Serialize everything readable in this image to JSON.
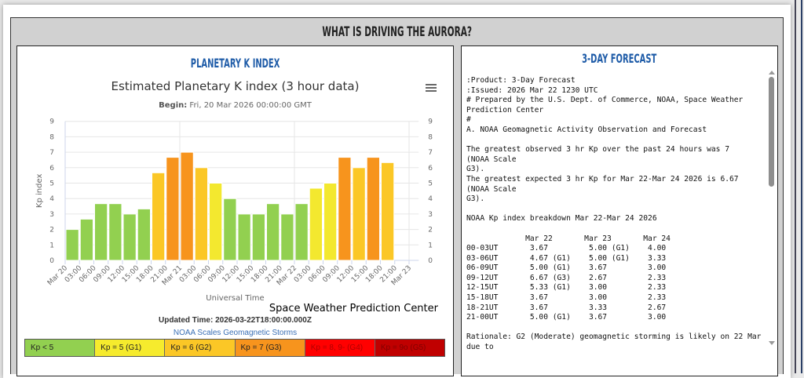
{
  "panel": {
    "title": "WHAT IS DRIVING THE AURORA?"
  },
  "kp_panel": {
    "title": "PLANETARY K INDEX",
    "chart_title": "Estimated Planetary K index (3 hour data)",
    "begin_label": "Begin:",
    "begin_value": "Fri, 20 Mar 2026 00:00:00 GMT",
    "menu_icon": "hamburger-menu-icon",
    "credit": "Space Weather Prediction Center",
    "updated": "Updated Time: 2026-03-22T18:00:00.000Z",
    "scales_link": "NOAA Scales Geomagnetic Storms",
    "legend": [
      {
        "label": "Kp < 5",
        "color": "#92d050",
        "text": "#222"
      },
      {
        "label": "Kp = 5 (G1)",
        "color": "#f6eb2d",
        "text": "#222"
      },
      {
        "label": "Kp = 6 (G2)",
        "color": "#fbc726",
        "text": "#222"
      },
      {
        "label": "Kp = 7 (G3)",
        "color": "#f7941d",
        "text": "#222"
      },
      {
        "label": "Kp = 8, 9- (G4)",
        "color": "#ff0000",
        "text": "#b00000"
      },
      {
        "label": "Kp = 9o (G5)",
        "color": "#c00000",
        "text": "#800000"
      }
    ]
  },
  "chart_data": {
    "type": "bar",
    "title": "Estimated Planetary K index (3 hour data)",
    "xlabel": "Universal Time",
    "ylabel": "Kp index",
    "ylim": [
      0,
      9
    ],
    "yticks": [
      0,
      1,
      2,
      3,
      4,
      5,
      6,
      7,
      8,
      9
    ],
    "grid": true,
    "xtick_labels": [
      "Mar 20",
      "03:00",
      "06:00",
      "09:00",
      "12:00",
      "15:00",
      "18:00",
      "21:00",
      "Mar 21",
      "03:00",
      "06:00",
      "09:00",
      "12:00",
      "15:00",
      "18:00",
      "21:00",
      "Mar 22",
      "03:00",
      "06:00",
      "09:00",
      "12:00",
      "15:00",
      "18:00",
      "21:00",
      "Mar 23"
    ],
    "categories": [
      "Mar 20 00:00",
      "Mar 20 03:00",
      "Mar 20 06:00",
      "Mar 20 09:00",
      "Mar 20 12:00",
      "Mar 20 15:00",
      "Mar 20 18:00",
      "Mar 20 21:00",
      "Mar 21 00:00",
      "Mar 21 03:00",
      "Mar 21 06:00",
      "Mar 21 09:00",
      "Mar 21 12:00",
      "Mar 21 15:00",
      "Mar 21 18:00",
      "Mar 21 21:00",
      "Mar 22 00:00",
      "Mar 22 03:00",
      "Mar 22 06:00",
      "Mar 22 09:00",
      "Mar 22 12:00",
      "Mar 22 15:00",
      "Mar 22 18:00"
    ],
    "values": [
      2.0,
      2.67,
      3.67,
      3.67,
      3.0,
      3.33,
      5.67,
      6.67,
      7.0,
      6.0,
      5.0,
      4.0,
      3.0,
      3.0,
      3.67,
      3.0,
      3.67,
      4.67,
      5.0,
      6.67,
      6.0,
      6.67,
      6.33
    ],
    "colors": {
      "below5": "#92d050",
      "g1": "#f3e82f",
      "g2": "#fbc726",
      "g3": "#f7941d"
    }
  },
  "forecast_panel": {
    "title": "3-DAY FORECAST",
    "text": ":Product: 3-Day Forecast\n:Issued: 2026 Mar 22 1230 UTC\n# Prepared by the U.S. Dept. of Commerce, NOAA, Space Weather Prediction Center\n#\nA. NOAA Geomagnetic Activity Observation and Forecast\n\nThe greatest observed 3 hr Kp over the past 24 hours was 7\n(NOAA Scale\nG3).\nThe greatest expected 3 hr Kp for Mar 22-Mar 24 2026 is 6.67\n(NOAA Scale\nG3).\n\nNOAA Kp index breakdown Mar 22-Mar 24 2026\n\n             Mar 22       Mar 23       Mar 24\n00-03UT       3.67         5.00 (G1)    4.00\n03-06UT       4.67 (G1)    5.00 (G1)    3.33\n06-09UT       5.00 (G1)    3.67         3.00\n09-12UT       6.67 (G3)    2.67         2.33\n12-15UT       5.33 (G1)    3.00         2.33\n15-18UT       3.67         3.00         2.33\n18-21UT       3.67         3.33         2.67\n21-00UT       5.00 (G1)    3.67         3.00\n\nRationale: G2 (Moderate) geomagnetic storming is likely on 22 Mar due to"
  }
}
